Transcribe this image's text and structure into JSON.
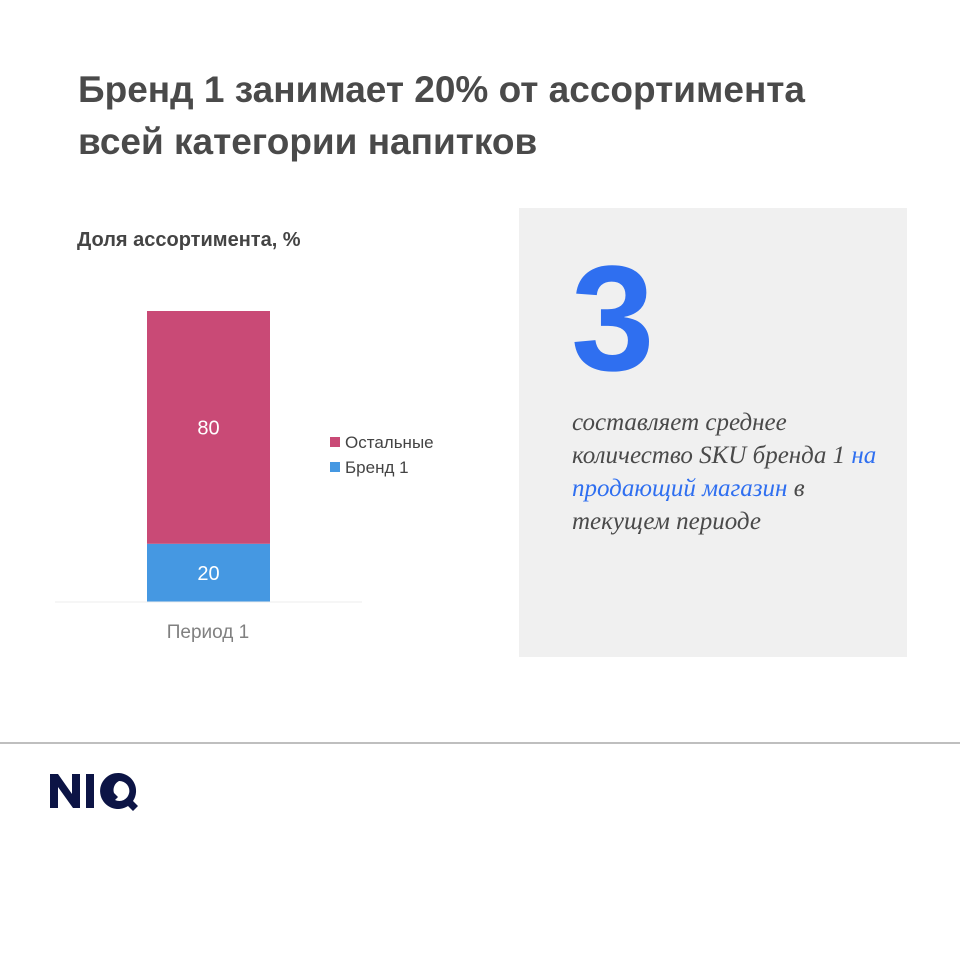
{
  "title": "Бренд 1 занимает 20% от ассортимента всей категории напитков",
  "colors": {
    "others": "#c94a76",
    "brand": "#4598e2",
    "accent": "#2f6ff0",
    "logo": "#0c1445"
  },
  "chart_data": {
    "type": "bar",
    "stacked": true,
    "title": "Доля ассортимента, %",
    "categories": [
      "Период 1"
    ],
    "series": [
      {
        "name": "Бренд 1",
        "values": [
          20
        ],
        "color": "#4598e2"
      },
      {
        "name": "Остальные",
        "values": [
          80
        ],
        "color": "#c94a76"
      }
    ],
    "ylim": [
      0,
      100
    ],
    "grid": false,
    "legend": "right"
  },
  "panel": {
    "big_number": "3",
    "text_before": "составляет среднее количество SKU бренда 1 ",
    "text_highlight": "на продающий магазин",
    "text_after": " в текущем периоде"
  },
  "logo": "NIQ"
}
